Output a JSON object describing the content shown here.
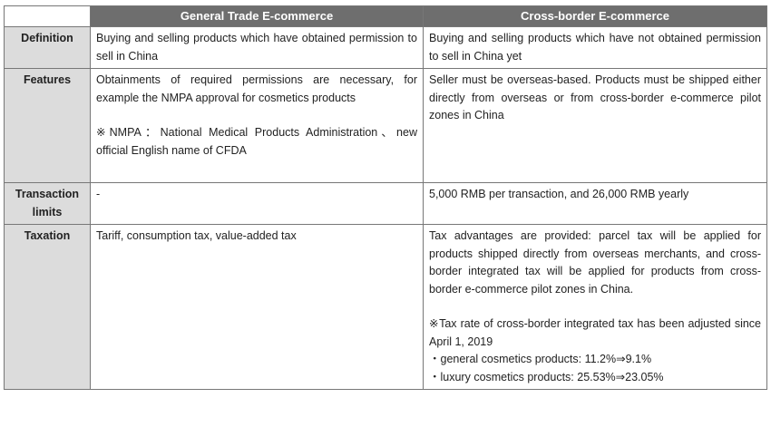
{
  "header": {
    "col2": "General Trade E-commerce",
    "col3": "Cross-border E-commerce"
  },
  "rows": {
    "definition": {
      "label": "Definition",
      "general": "Buying and selling products which have obtained permission to sell in China",
      "cross": "Buying and selling products which have not obtained permission to sell in China yet"
    },
    "features": {
      "label": "Features",
      "general": "Obtainments of required permissions are necessary, for example the NMPA approval for cosmetics products",
      "general_note": "※NMPA：National Medical Products Administration、new official English name of CFDA",
      "cross": "Seller must be overseas-based. Products must be shipped either directly from overseas or from cross-border e-commerce pilot zones in China"
    },
    "limits": {
      "label": "Transaction limits",
      "general": "-",
      "cross": "5,000 RMB per transaction, and 26,000 RMB yearly"
    },
    "taxation": {
      "label": "Taxation",
      "general": "Tariff, consumption tax, value-added tax",
      "cross": "Tax advantages are provided: parcel tax will be applied for products shipped directly from overseas merchants, and cross-border integrated tax will be applied for products from cross-border e-commerce pilot zones in China.",
      "cross_note": "※Tax rate of cross-border integrated tax has been adjusted since April 1, 2019",
      "bullet1": "・general cosmetics products: 11.2%⇒9.1%",
      "bullet2": "・luxury cosmetics products: 25.53%⇒23.05%"
    }
  }
}
